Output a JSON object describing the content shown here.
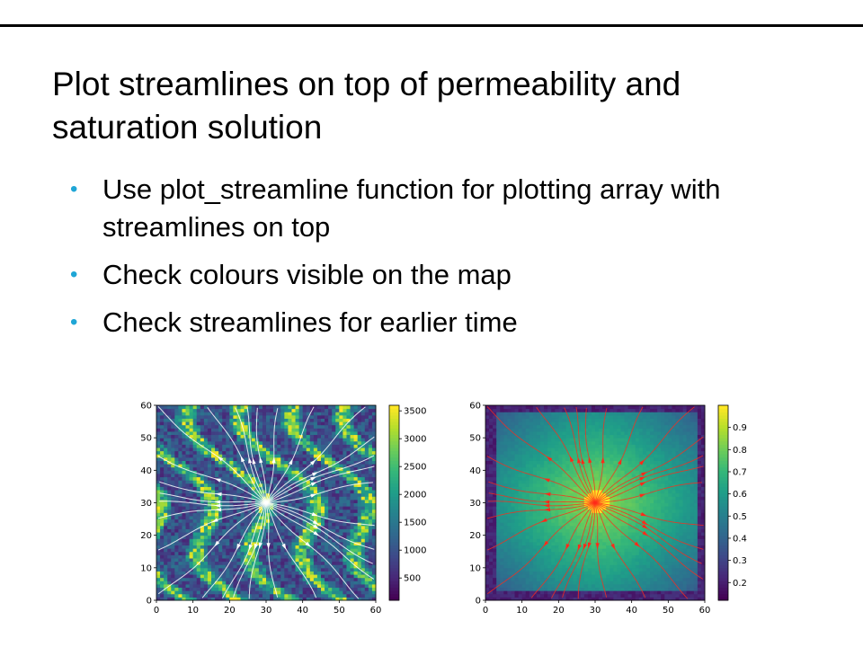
{
  "slide": {
    "title": "Plot streamlines on top of permeability and saturation solution",
    "bullets": [
      "Use plot_streamline function for plotting array with streamlines on top",
      "Check colours visible on the map",
      "Check streamlines for earlier time"
    ],
    "bullet_color": "#1fa6d6"
  },
  "chart_data": [
    {
      "type": "heatmap",
      "title": "",
      "xlabel": "",
      "ylabel": "",
      "xlim": [
        0,
        60
      ],
      "ylim": [
        0,
        60
      ],
      "x_ticks": [
        "0",
        "10",
        "20",
        "30",
        "40",
        "50",
        "60"
      ],
      "y_ticks": [
        "0",
        "10",
        "20",
        "30",
        "40",
        "50",
        "60"
      ],
      "colorbar": {
        "ticks": [
          "500",
          "1000",
          "1500",
          "2000",
          "2500",
          "3000",
          "3500"
        ],
        "tick_values": [
          500,
          1000,
          1500,
          2000,
          2500,
          3000,
          3500
        ],
        "range": [
          100,
          3600
        ],
        "colormap": "viridis"
      },
      "overlay": "streamlines",
      "streamline_color": "#ffffff",
      "source_point": [
        30,
        30
      ]
    },
    {
      "type": "heatmap",
      "title": "",
      "xlabel": "",
      "ylabel": "",
      "xlim": [
        0,
        60
      ],
      "ylim": [
        0,
        60
      ],
      "x_ticks": [
        "0",
        "10",
        "20",
        "30",
        "40",
        "50",
        "60"
      ],
      "y_ticks": [
        "0",
        "10",
        "20",
        "30",
        "40",
        "50",
        "60"
      ],
      "colorbar": {
        "ticks": [
          "0.2",
          "0.3",
          "0.4",
          "0.5",
          "0.6",
          "0.7",
          "0.8",
          "0.9"
        ],
        "tick_values": [
          0.2,
          0.3,
          0.4,
          0.5,
          0.6,
          0.7,
          0.8,
          0.9
        ],
        "range": [
          0.12,
          1.0
        ],
        "colormap": "viridis"
      },
      "overlay": "streamlines",
      "streamline_color": "#ff2a1a",
      "source_point": [
        30,
        30
      ]
    }
  ]
}
